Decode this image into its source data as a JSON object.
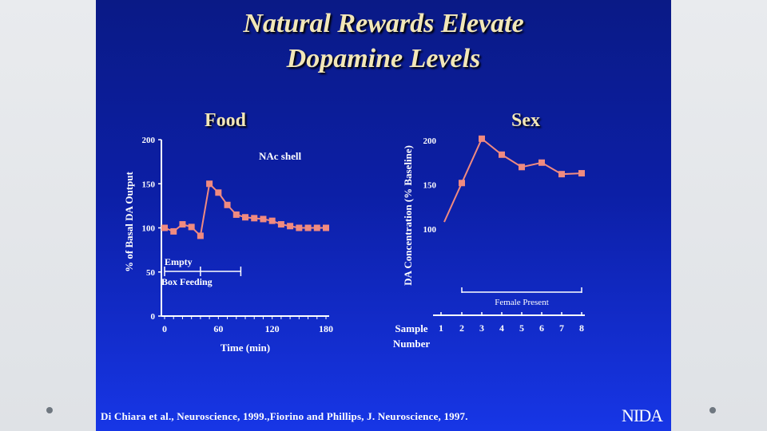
{
  "slide": {
    "title_line1": "Natural Rewards Elevate",
    "title_line2": "Dopamine Levels",
    "footer": "Di Chiara et al., Neuroscience, 1999.,Fiorino and Phillips, J. Neuroscience, 1997.",
    "logo": "NIDA"
  },
  "colors": {
    "background_top": "#0a1a86",
    "background_bottom": "#1736e6",
    "title": "#f2e7b8",
    "marker": "#f08a80",
    "axis": "#ffffff"
  },
  "chart_data": [
    {
      "type": "line",
      "title": "Food",
      "annotation": "NAc shell",
      "xlabel": "Time (min)",
      "ylabel": "% of Basal DA Output",
      "xlim": [
        0,
        180
      ],
      "ylim": [
        0,
        200
      ],
      "xticks": [
        "0",
        "60",
        "120",
        "180"
      ],
      "yticks": [
        "0",
        "50",
        "100",
        "150",
        "200"
      ],
      "x": [
        0,
        10,
        20,
        30,
        40,
        50,
        60,
        70,
        80,
        90,
        100,
        110,
        120,
        130,
        140,
        150,
        160,
        170,
        180
      ],
      "y": [
        100,
        96,
        104,
        101,
        91,
        150,
        140,
        126,
        115,
        112,
        111,
        110,
        108,
        104,
        102,
        100,
        100,
        100,
        100
      ],
      "phases": [
        {
          "label": "Empty",
          "x_start": 0,
          "x_end": 40
        },
        {
          "label": "Box Feeding",
          "x_start": 40,
          "x_end": 85
        }
      ]
    },
    {
      "type": "line",
      "title": "Sex",
      "xlabel": "Sample Number",
      "ylabel": "DA Concentration (% Baseline)",
      "ylim": [
        100,
        200
      ],
      "yticks": [
        "100",
        "150",
        "200"
      ],
      "xticks": [
        "1",
        "2",
        "3",
        "4",
        "5",
        "6",
        "7",
        "8"
      ],
      "x": [
        1,
        2,
        3,
        4,
        5,
        6,
        7,
        8
      ],
      "y": [
        108,
        152,
        202,
        184,
        170,
        175,
        162,
        163
      ],
      "bracket_label": "Female Present",
      "bracket_range": [
        2,
        8
      ]
    }
  ]
}
